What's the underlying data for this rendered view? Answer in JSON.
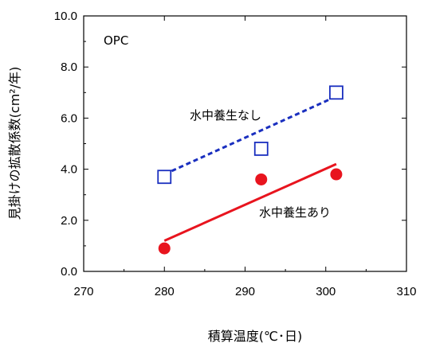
{
  "chart_data": {
    "type": "scatter",
    "xlabel": "積算温度(℃･日)",
    "ylabel": "見掛けの拡散係数(cm²/年)",
    "xlim": [
      270,
      310
    ],
    "ylim": [
      0,
      10
    ],
    "x_ticks": [
      "270",
      "280",
      "290",
      "300",
      "310"
    ],
    "y_ticks": [
      "0.0",
      "2.0",
      "4.0",
      "6.0",
      "8.0",
      "10.0"
    ],
    "grid": false,
    "legend": "none",
    "annotations": {
      "corner_label": "OPC"
    },
    "series": [
      {
        "name": "水中養生なし",
        "marker": "open-square",
        "color": "#1a2fbf",
        "points": [
          {
            "x": 280,
            "y": 3.7
          },
          {
            "x": 292,
            "y": 4.8
          },
          {
            "x": 301.3,
            "y": 7.0
          }
        ],
        "trendline": {
          "style": "dashed",
          "from": {
            "x": 280,
            "y": 3.8
          },
          "to": {
            "x": 301.3,
            "y": 6.85
          }
        }
      },
      {
        "name": "水中養生あり",
        "marker": "filled-circle",
        "color": "#e8141e",
        "points": [
          {
            "x": 280,
            "y": 0.9
          },
          {
            "x": 292,
            "y": 3.6
          },
          {
            "x": 301.3,
            "y": 3.8
          }
        ],
        "trendline": {
          "style": "solid",
          "from": {
            "x": 280,
            "y": 1.2
          },
          "to": {
            "x": 301.3,
            "y": 4.2
          }
        }
      }
    ]
  }
}
